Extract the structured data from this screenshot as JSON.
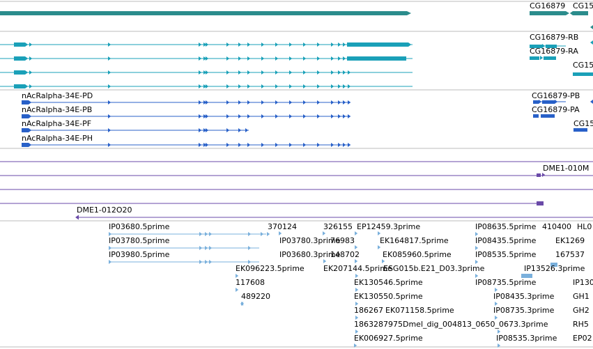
{
  "colors": {
    "gene": "#2b8c8c",
    "transcript_teal": "#1aa0b8",
    "cds_blue": "#2860c8",
    "purple": "#6a4aa8",
    "est": "#7ab0dc",
    "separator": "#bbbbbb"
  },
  "gene_track": {
    "labels": [
      "CG16879",
      "CG15"
    ]
  },
  "transcript_track": {
    "labels": [
      "CG16879-RB",
      "CG16879-RA",
      "CG15"
    ]
  },
  "cds_track": {
    "labels": [
      "nAcRalpha-34E-PD",
      "nAcRalpha-34E-PB",
      "nAcRalpha-34E-PF",
      "nAcRalpha-34E-PH",
      "CG16879-PB",
      "CG16879-PA",
      "CG15"
    ]
  },
  "purple_track": {
    "labels": [
      "DME1-010M",
      "DME1-012O20"
    ]
  },
  "est_track": {
    "labels": [
      "IP03680.5prime",
      "IP03780.5prime",
      "IP03980.5prime",
      "370124",
      "326155",
      "EP12459.3prime",
      "IP03780.3prime",
      "76983",
      "EK164817.5prime",
      "IP03680.3prime",
      "148702",
      "EK085960.5prime",
      "EK096223.5prime",
      "EK207144.5prime",
      "ESG015b.E21_D03.3prime",
      "117608",
      "489220",
      "EK130546.5prime",
      "EK130550.5prime",
      "186267",
      "EK071158.5prime",
      "1863287975Dmel_dig_004813_0650_0673.3prime",
      "EK006927.5prime",
      "IP08635.5prime",
      "410400",
      "HL0",
      "IP08435.5prime",
      "EK1269",
      "IP08535.5prime",
      "167537",
      "IP13526.3prime",
      "IP08735.5prime",
      "IP130",
      "IP08435.3prime",
      "GH1",
      "IP08735.3prime",
      "GH2",
      "IP08535.3prime",
      "RH5",
      "EP02"
    ]
  }
}
